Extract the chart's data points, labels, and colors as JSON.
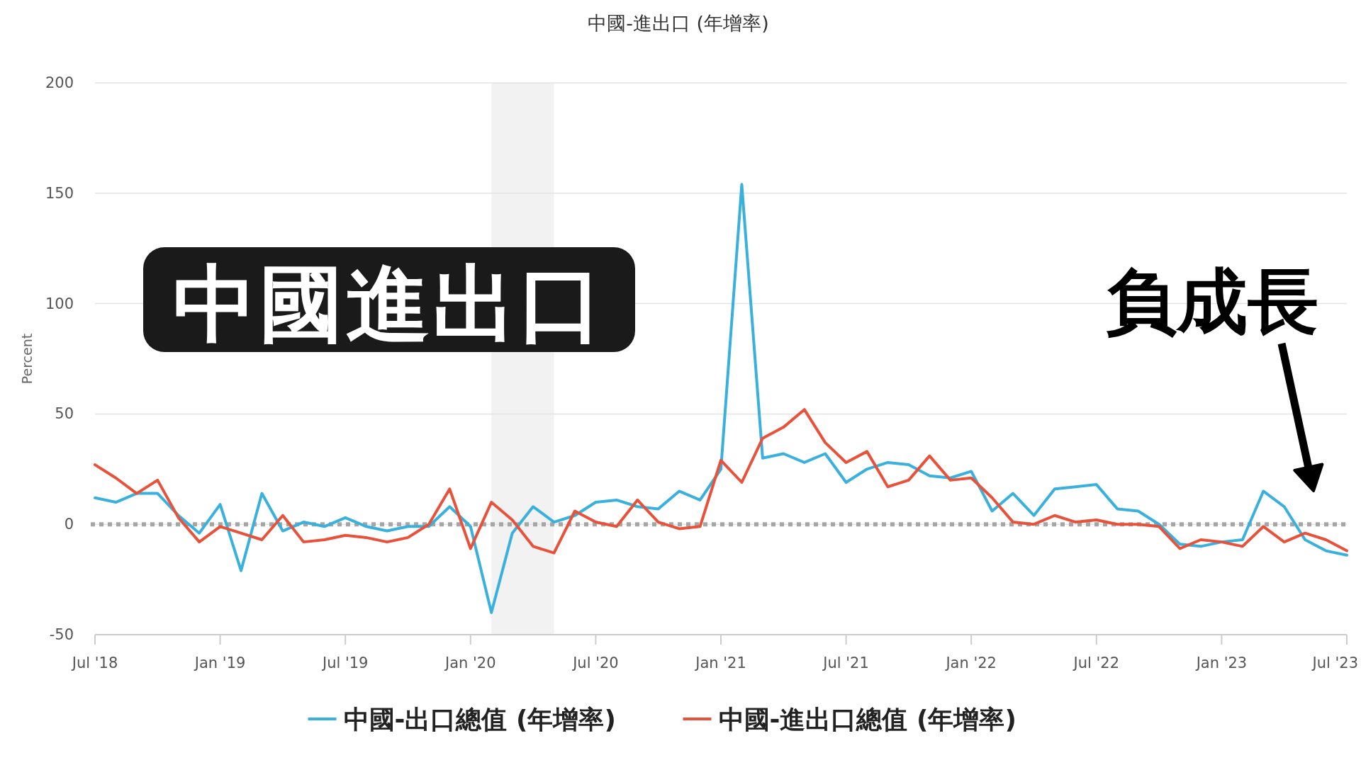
{
  "chart_data": {
    "type": "line",
    "title": "中國-進出口 (年增率)",
    "ylabel": "Percent",
    "x": [
      "2018-07",
      "2018-08",
      "2018-09",
      "2018-10",
      "2018-11",
      "2018-12",
      "2019-01",
      "2019-02",
      "2019-03",
      "2019-04",
      "2019-05",
      "2019-06",
      "2019-07",
      "2019-08",
      "2019-09",
      "2019-10",
      "2019-11",
      "2019-12",
      "2020-01",
      "2020-02",
      "2020-03",
      "2020-04",
      "2020-05",
      "2020-06",
      "2020-07",
      "2020-08",
      "2020-09",
      "2020-10",
      "2020-11",
      "2020-12",
      "2021-01",
      "2021-02",
      "2021-03",
      "2021-04",
      "2021-05",
      "2021-06",
      "2021-07",
      "2021-08",
      "2021-09",
      "2021-10",
      "2021-11",
      "2021-12",
      "2022-01",
      "2022-02",
      "2022-03",
      "2022-04",
      "2022-05",
      "2022-06",
      "2022-07",
      "2022-08",
      "2022-09",
      "2022-10",
      "2022-11",
      "2022-12",
      "2023-01",
      "2023-02",
      "2023-03",
      "2023-04",
      "2023-05",
      "2023-06",
      "2023-07"
    ],
    "series": [
      {
        "name": "中國-出口總值 (年增率)",
        "color": "#3ab0dc",
        "values": [
          12,
          10,
          14,
          14,
          4,
          -4,
          9,
          -21,
          14,
          -3,
          1,
          -1,
          3,
          -1,
          -3,
          -1,
          -1,
          8,
          -1,
          -40,
          -4,
          8,
          1,
          4,
          10,
          11,
          8,
          7,
          15,
          11,
          25,
          154,
          30,
          32,
          28,
          32,
          19,
          25,
          28,
          27,
          22,
          21,
          24,
          6,
          14,
          4,
          16,
          17,
          18,
          7,
          6,
          0,
          -9,
          -10,
          -8,
          -7,
          15,
          8,
          -7,
          -12,
          -14
        ]
      },
      {
        "name": "中國-進出口總值 (年增率)",
        "color": "#e8513a",
        "values": [
          27,
          21,
          14,
          20,
          3,
          -8,
          -1,
          -4,
          -7,
          4,
          -8,
          -7,
          -5,
          -6,
          -8,
          -6,
          0,
          16,
          -11,
          10,
          2,
          -10,
          -13,
          6,
          1,
          -1,
          11,
          1,
          -2,
          -1,
          29,
          19,
          39,
          44,
          52,
          37,
          28,
          33,
          17,
          20,
          31,
          20,
          21,
          12,
          1,
          0,
          4,
          1,
          2,
          0,
          0,
          -1,
          -11,
          -7,
          -8,
          -10,
          -1,
          -8,
          -4,
          -7,
          -12
        ]
      }
    ],
    "xlim": [
      "2018-07",
      "2023-07"
    ],
    "xticks": [
      {
        "value": "2018-07",
        "label": "Jul '18"
      },
      {
        "value": "2019-01",
        "label": "Jan '19"
      },
      {
        "value": "2019-07",
        "label": "Jul '19"
      },
      {
        "value": "2020-01",
        "label": "Jan '20"
      },
      {
        "value": "2020-07",
        "label": "Jul '20"
      },
      {
        "value": "2021-01",
        "label": "Jan '21"
      },
      {
        "value": "2021-07",
        "label": "Jul '21"
      },
      {
        "value": "2022-01",
        "label": "Jan '22"
      },
      {
        "value": "2022-07",
        "label": "Jul '22"
      },
      {
        "value": "2023-01",
        "label": "Jan '23"
      },
      {
        "value": "2023-07",
        "label": "Jul '23"
      }
    ],
    "ylim": [
      -50,
      200
    ],
    "yticks": [
      -50,
      0,
      50,
      100,
      150,
      200
    ],
    "grid": "y",
    "legend": "bottom",
    "marker": "none",
    "line_style": "solid",
    "ref_lines": [
      {
        "axis": "y",
        "value": 0,
        "color": "#a6a6a6",
        "line_style": "dotted"
      }
    ],
    "bands": [
      {
        "axis": "x",
        "from": "2020-02",
        "to": "2020-05",
        "color": "#f2f2f2"
      }
    ],
    "annotations": [
      "中國進出口",
      "負成長"
    ]
  }
}
